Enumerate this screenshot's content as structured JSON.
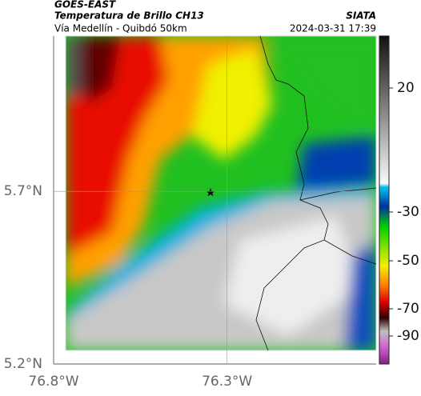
{
  "header": {
    "satellite": "GOES-EAST",
    "product": "Temperatura de Brillo CH13",
    "region": "Vía Medellín - Quibdó 50km",
    "source": "SIATA",
    "datetime": "2024-03-31 17:39"
  },
  "map": {
    "xlim": [
      -76.8,
      -75.87
    ],
    "ylim": [
      5.2,
      6.15
    ],
    "xticks": [
      {
        "value": -76.8,
        "label": "76.8°W"
      },
      {
        "value": -76.3,
        "label": "76.3°W"
      }
    ],
    "yticks": [
      {
        "value": 5.2,
        "label": "5.2°N"
      },
      {
        "value": 5.7,
        "label": "5.7°N"
      }
    ],
    "grid": true
  },
  "colorbar": {
    "ticks": [
      20,
      -30,
      -50,
      -70,
      -90
    ]
  }
}
